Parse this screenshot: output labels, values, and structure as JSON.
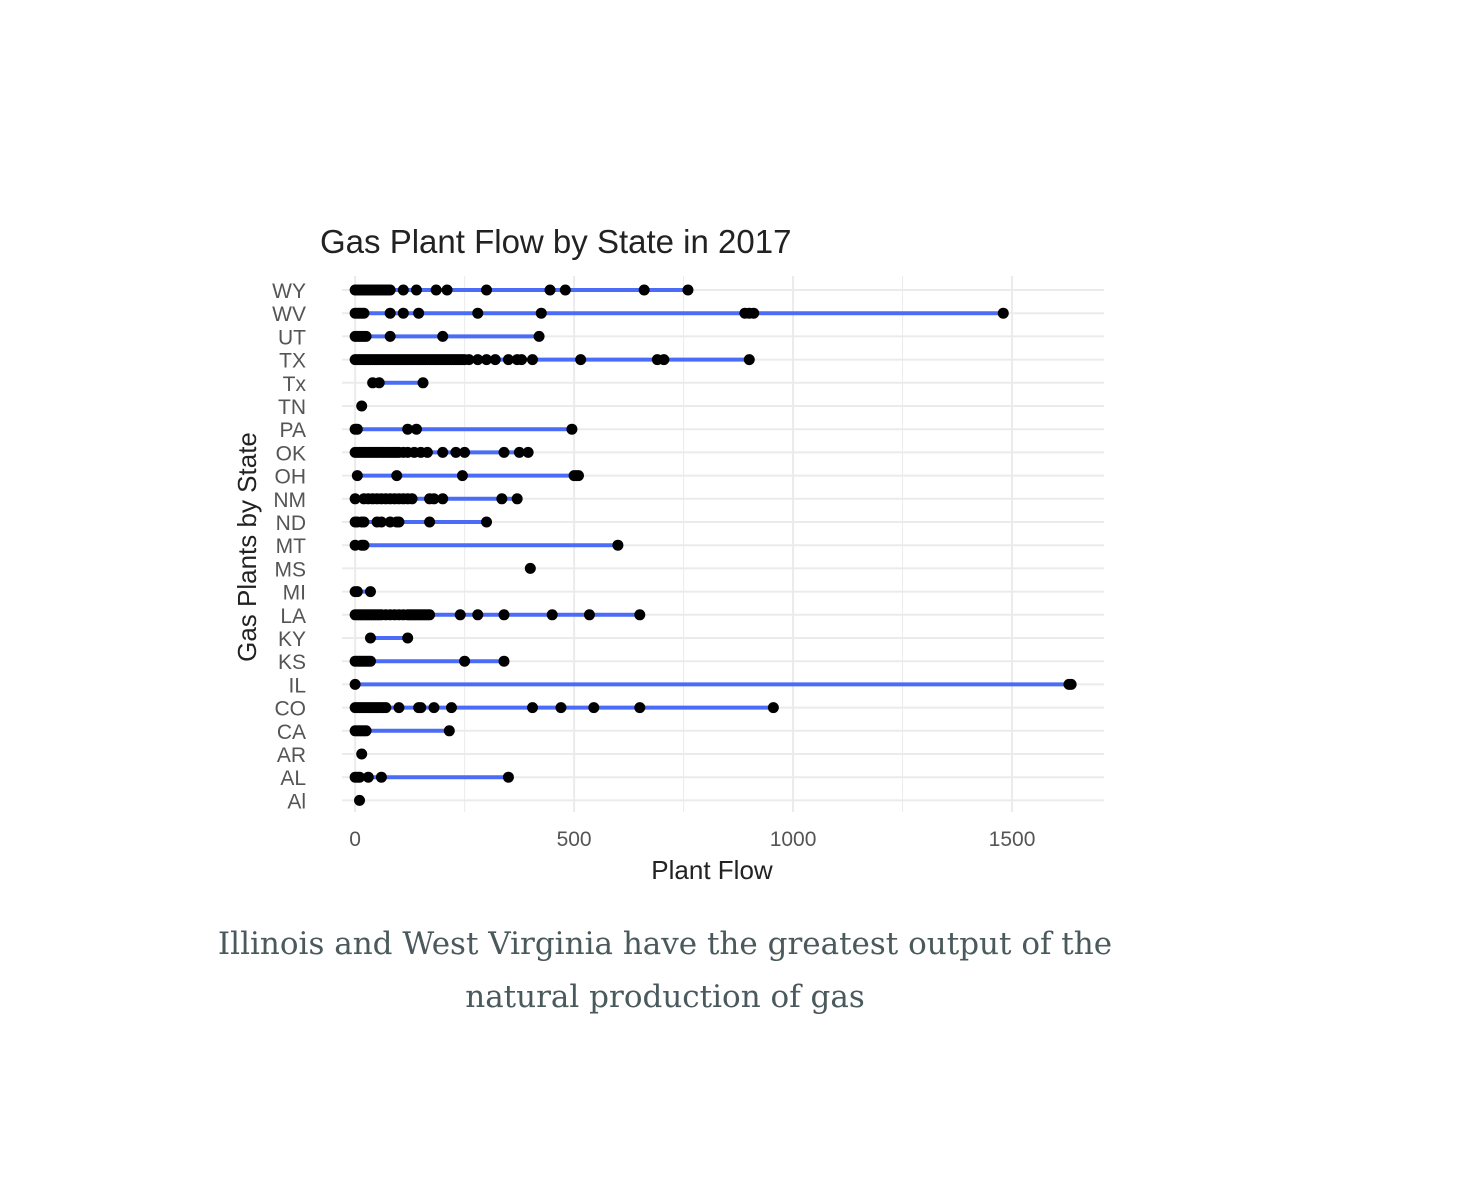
{
  "chart_data": {
    "type": "scatter",
    "title": "Gas Plant Flow by State in 2017",
    "xlabel": "Plant Flow",
    "ylabel": "Gas Plants by State",
    "xlim": [
      -30,
      1710
    ],
    "x_ticks": [
      0,
      500,
      1000,
      1500
    ],
    "grid": true,
    "line_color": "#4a6cf7",
    "point_color": "#000000",
    "categories": [
      "WY",
      "WV",
      "UT",
      "TX",
      "Tx",
      "TN",
      "PA",
      "OK",
      "OH",
      "NM",
      "ND",
      "MT",
      "MS",
      "MI",
      "LA",
      "KY",
      "KS",
      "IL",
      "CO",
      "CA",
      "AR",
      "AL",
      "Al"
    ],
    "series": [
      {
        "category": "WY",
        "min": 0,
        "max": 760,
        "points": [
          0,
          5,
          10,
          15,
          20,
          25,
          30,
          35,
          40,
          45,
          50,
          55,
          60,
          65,
          70,
          75,
          80,
          110,
          140,
          185,
          210,
          300,
          445,
          480,
          660,
          760
        ]
      },
      {
        "category": "WV",
        "min": 0,
        "max": 1480,
        "points": [
          0,
          5,
          10,
          15,
          20,
          80,
          110,
          145,
          280,
          425,
          890,
          900,
          910,
          1480
        ]
      },
      {
        "category": "UT",
        "min": 0,
        "max": 420,
        "points": [
          0,
          5,
          10,
          15,
          20,
          25,
          80,
          200,
          420
        ]
      },
      {
        "category": "TX",
        "min": 0,
        "max": 900,
        "points": [
          0,
          5,
          10,
          15,
          20,
          25,
          30,
          35,
          40,
          45,
          50,
          55,
          60,
          65,
          70,
          75,
          80,
          85,
          90,
          95,
          100,
          105,
          110,
          115,
          120,
          125,
          130,
          135,
          140,
          145,
          150,
          155,
          160,
          165,
          170,
          175,
          180,
          185,
          190,
          195,
          200,
          205,
          210,
          215,
          220,
          225,
          230,
          235,
          240,
          245,
          250,
          260,
          280,
          300,
          320,
          350,
          370,
          380,
          405,
          515,
          690,
          705,
          900
        ]
      },
      {
        "category": "Tx",
        "min": 40,
        "max": 155,
        "points": [
          40,
          55,
          155
        ]
      },
      {
        "category": "TN",
        "min": 15,
        "max": 15,
        "points": [
          15
        ]
      },
      {
        "category": "PA",
        "min": 0,
        "max": 495,
        "points": [
          0,
          5,
          120,
          140,
          495
        ]
      },
      {
        "category": "OK",
        "min": 0,
        "max": 395,
        "points": [
          0,
          5,
          10,
          15,
          20,
          25,
          30,
          35,
          40,
          45,
          50,
          55,
          60,
          65,
          70,
          75,
          80,
          85,
          90,
          95,
          100,
          110,
          120,
          135,
          150,
          165,
          200,
          230,
          250,
          340,
          375,
          395
        ]
      },
      {
        "category": "OH",
        "min": 5,
        "max": 510,
        "points": [
          5,
          95,
          245,
          500,
          505,
          510
        ]
      },
      {
        "category": "NM",
        "min": 0,
        "max": 370,
        "points": [
          0,
          20,
          30,
          40,
          50,
          60,
          70,
          80,
          90,
          100,
          110,
          120,
          130,
          170,
          180,
          200,
          335,
          370
        ]
      },
      {
        "category": "ND",
        "min": 0,
        "max": 300,
        "points": [
          0,
          5,
          15,
          20,
          50,
          60,
          80,
          95,
          100,
          170,
          300
        ]
      },
      {
        "category": "MT",
        "min": 0,
        "max": 600,
        "points": [
          0,
          15,
          20,
          600
        ]
      },
      {
        "category": "MS",
        "min": 400,
        "max": 400,
        "points": [
          400
        ]
      },
      {
        "category": "MI",
        "min": 0,
        "max": 35,
        "points": [
          0,
          5,
          35
        ]
      },
      {
        "category": "LA",
        "min": 0,
        "max": 650,
        "points": [
          0,
          5,
          10,
          15,
          20,
          25,
          30,
          35,
          40,
          45,
          50,
          55,
          60,
          70,
          80,
          90,
          100,
          110,
          120,
          125,
          130,
          135,
          140,
          145,
          150,
          155,
          160,
          165,
          170,
          240,
          280,
          340,
          450,
          535,
          650
        ]
      },
      {
        "category": "KY",
        "min": 35,
        "max": 120,
        "points": [
          35,
          120
        ]
      },
      {
        "category": "KS",
        "min": 0,
        "max": 340,
        "points": [
          0,
          5,
          10,
          15,
          20,
          25,
          30,
          35,
          250,
          340
        ]
      },
      {
        "category": "IL",
        "min": 0,
        "max": 1635,
        "points": [
          0,
          1630,
          1635
        ]
      },
      {
        "category": "CO",
        "min": 0,
        "max": 955,
        "points": [
          0,
          5,
          10,
          15,
          20,
          25,
          30,
          35,
          40,
          45,
          50,
          55,
          60,
          65,
          70,
          100,
          145,
          150,
          180,
          220,
          405,
          470,
          545,
          650,
          955
        ]
      },
      {
        "category": "CA",
        "min": 0,
        "max": 215,
        "points": [
          0,
          5,
          10,
          15,
          20,
          25,
          215
        ]
      },
      {
        "category": "AR",
        "min": 15,
        "max": 15,
        "points": [
          15
        ]
      },
      {
        "category": "AL",
        "min": 0,
        "max": 350,
        "points": [
          0,
          5,
          10,
          30,
          60,
          350
        ]
      },
      {
        "category": "Al",
        "min": 10,
        "max": 10,
        "points": [
          10
        ]
      }
    ]
  },
  "caption": {
    "line1": "Illinois and West Virginia have the greatest output of the",
    "line2": "natural production of gas"
  }
}
